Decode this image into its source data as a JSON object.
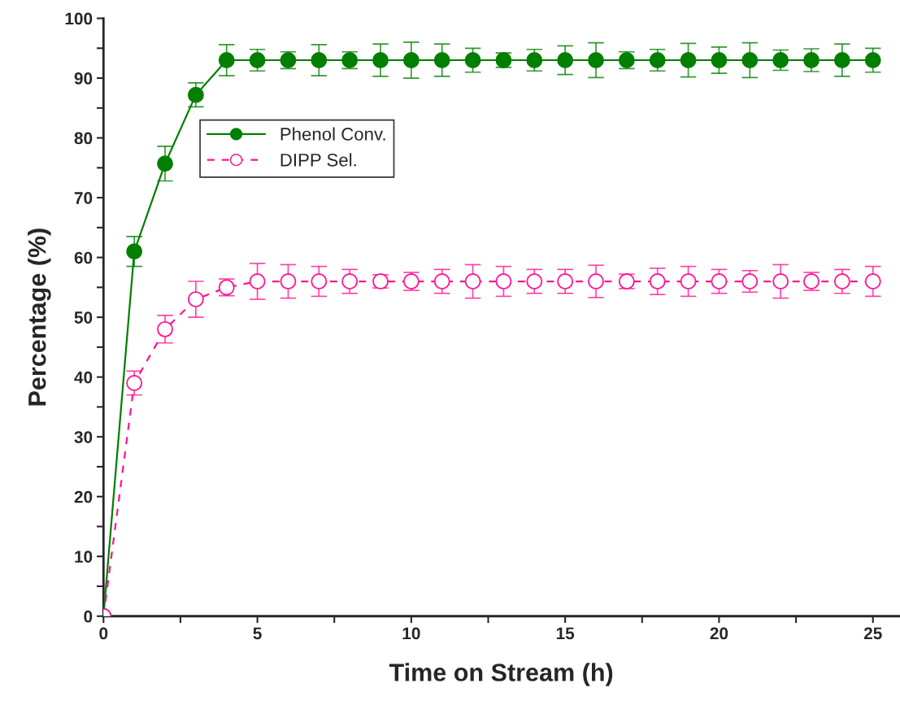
{
  "chart_data": {
    "type": "line",
    "xlabel": "Time on Stream (h)",
    "ylabel": "Percentage (%)",
    "x": [
      0,
      1,
      2,
      3,
      4,
      5,
      6,
      7,
      8,
      9,
      10,
      11,
      12,
      13,
      14,
      15,
      16,
      17,
      18,
      19,
      20,
      21,
      22,
      23,
      24,
      25
    ],
    "series": [
      {
        "name": "Phenol Conv.",
        "color": "#007f00",
        "marker": "circle",
        "line_style": "solid",
        "values": [
          0,
          61,
          75.7,
          87.2,
          93,
          93,
          93,
          93,
          93,
          93,
          93,
          93,
          93,
          93,
          93,
          93,
          93,
          93,
          93,
          93,
          93,
          93,
          93,
          93,
          93,
          93
        ],
        "errors": [
          null,
          2.5,
          2.9,
          2,
          2.6,
          1.8,
          1.4,
          2.6,
          1.4,
          2.7,
          3,
          2.7,
          2,
          1.2,
          1.8,
          2.4,
          2.9,
          1.4,
          1.8,
          2.8,
          2.2,
          2.9,
          1.7,
          1.9,
          2.7,
          2
        ]
      },
      {
        "name": "DIPP Sel.",
        "color": "#ff1493",
        "marker": "circle",
        "line_style": "dashed",
        "values": [
          0,
          39,
          48,
          53,
          55,
          56,
          56,
          56,
          56,
          56,
          56,
          56,
          56,
          56,
          56,
          56,
          56,
          56,
          56,
          56,
          56,
          56,
          56,
          56,
          56,
          56
        ],
        "errors": [
          null,
          2,
          2.3,
          3,
          1.4,
          3,
          2.8,
          2.5,
          2,
          1.1,
          1.5,
          2,
          2.8,
          2.5,
          2,
          2,
          2.7,
          1.2,
          2.2,
          2.5,
          2,
          1.8,
          2.8,
          1.5,
          2,
          2.5
        ]
      }
    ],
    "xlim": [
      0,
      25.85
    ],
    "ylim": [
      0,
      100
    ],
    "xticks": [
      0,
      {
        "value": 2.5,
        "label": null
      },
      5,
      {
        "value": 7.5,
        "label": null
      },
      10,
      {
        "value": 12.5,
        "label": null
      },
      15,
      {
        "value": 17.5,
        "label": null
      },
      20,
      {
        "value": 22.5,
        "label": null
      },
      25
    ],
    "yticks": [
      0,
      {
        "value": 5,
        "label": null
      },
      10,
      {
        "value": 15,
        "label": null
      },
      20,
      {
        "value": 25,
        "label": null
      },
      30,
      {
        "value": 35,
        "label": null
      },
      40,
      {
        "value": 45,
        "label": null
      },
      50,
      {
        "value": 55,
        "label": null
      },
      60,
      {
        "value": 65,
        "label": null
      },
      70,
      {
        "value": 75,
        "label": null
      },
      80,
      {
        "value": 85,
        "label": null
      },
      90,
      {
        "value": 95,
        "label": null
      },
      100
    ],
    "grid": false,
    "legend": "upper left"
  }
}
